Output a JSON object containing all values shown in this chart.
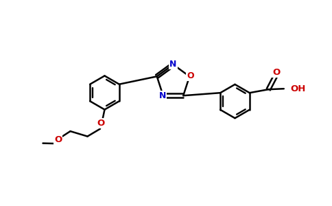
{
  "bg_color": "#ffffff",
  "bond_color": "#000000",
  "N_color": "#0000cc",
  "O_color": "#cc0000",
  "lw": 1.8,
  "lw_inner": 1.6,
  "figsize": [
    4.84,
    3.0
  ],
  "dpi": 100,
  "xlim": [
    0,
    9.68
  ],
  "ylim": [
    0,
    6.0
  ]
}
